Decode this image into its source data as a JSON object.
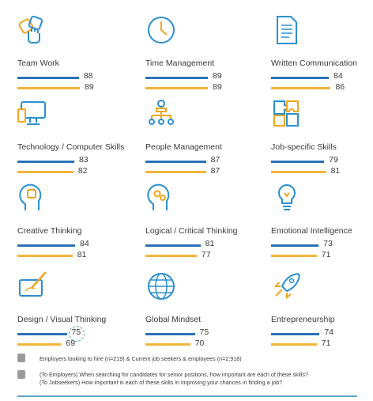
{
  "chart_data": {
    "type": "bar",
    "series": [
      {
        "name": "Employers looking to hire (n=219)",
        "color": "#2a73b8"
      },
      {
        "name": "Current job seekers & employees (n=2,918)",
        "color": "#f2b43a"
      }
    ],
    "scale_max": 100,
    "skills": [
      {
        "label": "Team Work",
        "employers": 88,
        "seekers": 89,
        "icon": "hands-icon"
      },
      {
        "label": "Time Management",
        "employers": 89,
        "seekers": 89,
        "icon": "clock-icon"
      },
      {
        "label": "Written Communication",
        "employers": 84,
        "seekers": 86,
        "icon": "document-icon"
      },
      {
        "label": "Technology / Computer Skills",
        "employers": 83,
        "seekers": 82,
        "icon": "computer-icon"
      },
      {
        "label": "People Management",
        "employers": 87,
        "seekers": 87,
        "icon": "org-chart-icon"
      },
      {
        "label": "Job-specific Skills",
        "employers": 79,
        "seekers": 81,
        "icon": "puzzle-icon"
      },
      {
        "label": "Creative Thinking",
        "employers": 84,
        "seekers": 81,
        "icon": "head-bulb-icon"
      },
      {
        "label": "Logical / Critical Thinking",
        "employers": 81,
        "seekers": 77,
        "icon": "head-gears-icon"
      },
      {
        "label": "Emotional Intelligence",
        "employers": 73,
        "seekers": 71,
        "icon": "lightbulb-icon"
      },
      {
        "label": "Design / Visual Thinking",
        "employers": 75,
        "seekers": 69,
        "icon": "tablet-pen-icon",
        "highlight": "employers"
      },
      {
        "label": "Global Mindset",
        "employers": 75,
        "seekers": 70,
        "icon": "globe-icon"
      },
      {
        "label": "Entrepreneurship",
        "employers": 74,
        "seekers": 71,
        "icon": "rocket-icon"
      }
    ]
  },
  "legend": {
    "series_text": "Employers looking to hire (n=219) & Current job seekers & employees (n=2,918)",
    "question_employers": "(To Employers) When searching for candidates for senior positions, how important are each of these skills?",
    "question_jobseekers": "(To Jobseekers) How important is each of these skills in improving your chances in finding a job?"
  },
  "colors": {
    "accent_blue": "#2a73b8",
    "accent_yellow": "#f2b43a",
    "icon_blue": "#2a8fd0",
    "icon_orange": "#f2a51e"
  }
}
